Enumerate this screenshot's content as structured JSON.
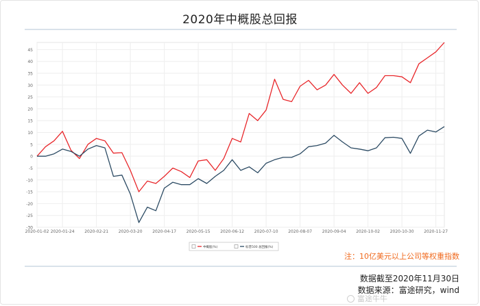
{
  "header": {
    "title": "2020年中概股总回报"
  },
  "note": "注：10亿美元以上公司等权重指数",
  "footer": {
    "date_line": "数据截至2020年11月30日",
    "source_line": "数据来源：富途研究，wind"
  },
  "watermark": {
    "text": "富途牛牛",
    "icon": "futu-logo-icon"
  },
  "colors": {
    "series1": "#e8262a",
    "series2": "#2b4a63",
    "grid": "#eeeeee",
    "rule": "#d9e2ea",
    "note": "#f06a1e"
  },
  "chart_data": {
    "type": "line",
    "title": "2020年中概股总回报",
    "xlabel": "",
    "ylabel": "",
    "ylim": [
      -30,
      48
    ],
    "yticks": [
      -30,
      -25,
      -20,
      -15,
      -10,
      -5,
      0,
      5,
      10,
      15,
      20,
      25,
      30,
      35,
      40,
      45
    ],
    "xticks": [
      "2020-01-02",
      "2020-01-24",
      "2020-02-21",
      "2020-03-20",
      "2020-04-17",
      "2020-05-15",
      "2020-06-12",
      "2020-07-10",
      "2020-08-07",
      "2020-09-04",
      "2020-10-02",
      "2020-10-30",
      "2020-11-27"
    ],
    "grid": true,
    "legend_position": "bottom-center",
    "x": [
      "2020-01-02",
      "2020-01-10",
      "2020-01-17",
      "2020-01-24",
      "2020-01-31",
      "2020-02-07",
      "2020-02-14",
      "2020-02-21",
      "2020-02-28",
      "2020-03-06",
      "2020-03-13",
      "2020-03-20",
      "2020-03-27",
      "2020-04-03",
      "2020-04-10",
      "2020-04-17",
      "2020-04-24",
      "2020-05-01",
      "2020-05-08",
      "2020-05-15",
      "2020-05-22",
      "2020-05-29",
      "2020-06-05",
      "2020-06-12",
      "2020-06-19",
      "2020-06-26",
      "2020-07-03",
      "2020-07-10",
      "2020-07-17",
      "2020-07-24",
      "2020-07-31",
      "2020-08-07",
      "2020-08-14",
      "2020-08-21",
      "2020-08-28",
      "2020-09-04",
      "2020-09-11",
      "2020-09-18",
      "2020-09-25",
      "2020-10-02",
      "2020-10-09",
      "2020-10-16",
      "2020-10-23",
      "2020-10-30",
      "2020-11-06",
      "2020-11-13",
      "2020-11-20",
      "2020-11-27",
      "2020-11-30"
    ],
    "series": [
      {
        "name": "中概股(%)",
        "values": [
          0,
          4,
          6.5,
          10.5,
          2.5,
          -1,
          5,
          7.5,
          6.5,
          1.3,
          1.5,
          -6,
          -15,
          -10.5,
          -11.5,
          -8.5,
          -5,
          -6.5,
          -9,
          -2,
          -1.5,
          -6,
          -1,
          7.5,
          6,
          18,
          15,
          19.5,
          32.5,
          24,
          23,
          29.5,
          32,
          28,
          30,
          34.5,
          30,
          26.5,
          31,
          26.5,
          29,
          34,
          34,
          33.5,
          31,
          39,
          41.5,
          44,
          48
        ]
      },
      {
        "name": "标普500 总回报(%)",
        "values": [
          0,
          0,
          1,
          3,
          2,
          0,
          3,
          4.5,
          3.5,
          -8.5,
          -8,
          -16,
          -28,
          -21.5,
          -23,
          -13.5,
          -11,
          -12,
          -12,
          -9.5,
          -11.5,
          -8.5,
          -6,
          -1.5,
          -6,
          -4.5,
          -7,
          -3,
          -1.5,
          -0.5,
          -0.5,
          1,
          4,
          4.5,
          5.5,
          8.8,
          6,
          3.5,
          3,
          2.3,
          3.5,
          7.8,
          8,
          7.5,
          1.2,
          8.5,
          11,
          10.2,
          12.5
        ]
      }
    ]
  }
}
